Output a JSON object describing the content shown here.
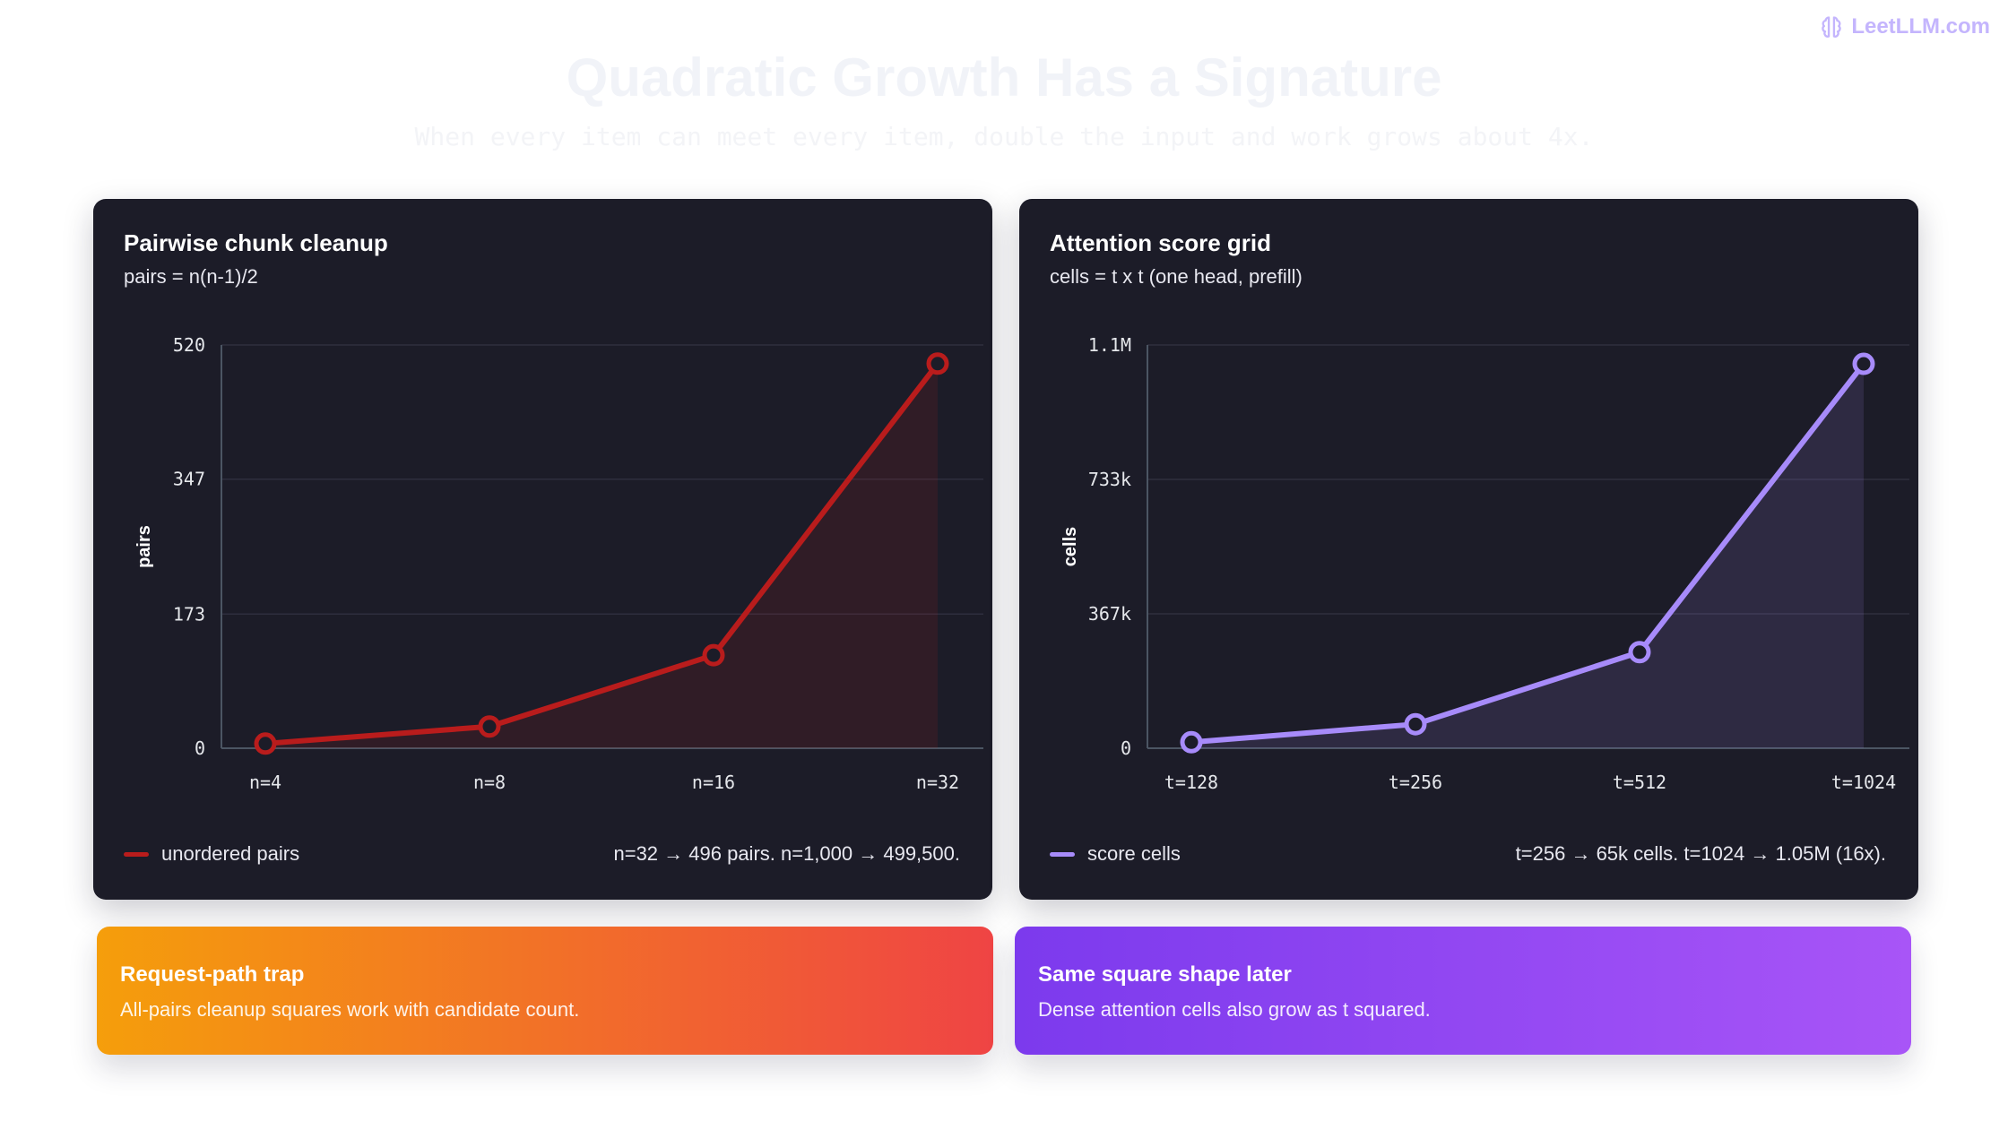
{
  "brand": {
    "label": "LeetLLM.com",
    "icon": "brain-icon",
    "color": "#c4b5fd"
  },
  "page": {
    "title": "Quadratic Growth Has a Signature",
    "subtitle": "When every item can meet every item, double the input and work grows about 4x."
  },
  "left_card": {
    "title": "Pairwise chunk cleanup",
    "formula": "pairs = n(n-1)/2",
    "legend_label": "unordered pairs",
    "note": "n=32 → 496 pairs. n=1,000 → 499,500.",
    "color": "#b91c1c"
  },
  "right_card": {
    "title": "Attention score grid",
    "formula": "cells = t x t (one head, prefill)",
    "legend_label": "score cells",
    "note": "t=256 → 65k cells. t=1024 → 1.05M (16x).",
    "color": "#a78bfa"
  },
  "callouts": {
    "left": {
      "title": "Request-path trap",
      "text": "All-pairs cleanup squares work with candidate count."
    },
    "right": {
      "title": "Same square shape later",
      "text": "Dense attention cells also grow as t squared."
    }
  },
  "chart_data": [
    {
      "type": "area",
      "title": "Pairwise chunk cleanup",
      "subtitle": "pairs = n(n-1)/2",
      "xlabel": "",
      "ylabel": "pairs",
      "categories": [
        "n=4",
        "n=8",
        "n=16",
        "n=32"
      ],
      "series": [
        {
          "name": "unordered pairs",
          "values": [
            6,
            28,
            120,
            496
          ],
          "color": "#b91c1c"
        }
      ],
      "ylim": [
        0,
        520
      ],
      "yticks": [
        0,
        173,
        347,
        520
      ],
      "ytick_labels": [
        "0",
        "173",
        "347",
        "520"
      ],
      "grid": true
    },
    {
      "type": "area",
      "title": "Attention score grid",
      "subtitle": "cells = t x t (one head, prefill)",
      "xlabel": "",
      "ylabel": "cells",
      "categories": [
        "t=128",
        "t=256",
        "t=512",
        "t=1024"
      ],
      "series": [
        {
          "name": "score cells",
          "values": [
            16384,
            65536,
            262144,
            1048576
          ],
          "color": "#a78bfa"
        }
      ],
      "ylim": [
        0,
        1100000
      ],
      "yticks": [
        0,
        366667,
        733333,
        1100000
      ],
      "ytick_labels": [
        "0",
        "367k",
        "733k",
        "1.1M"
      ],
      "grid": true
    }
  ]
}
